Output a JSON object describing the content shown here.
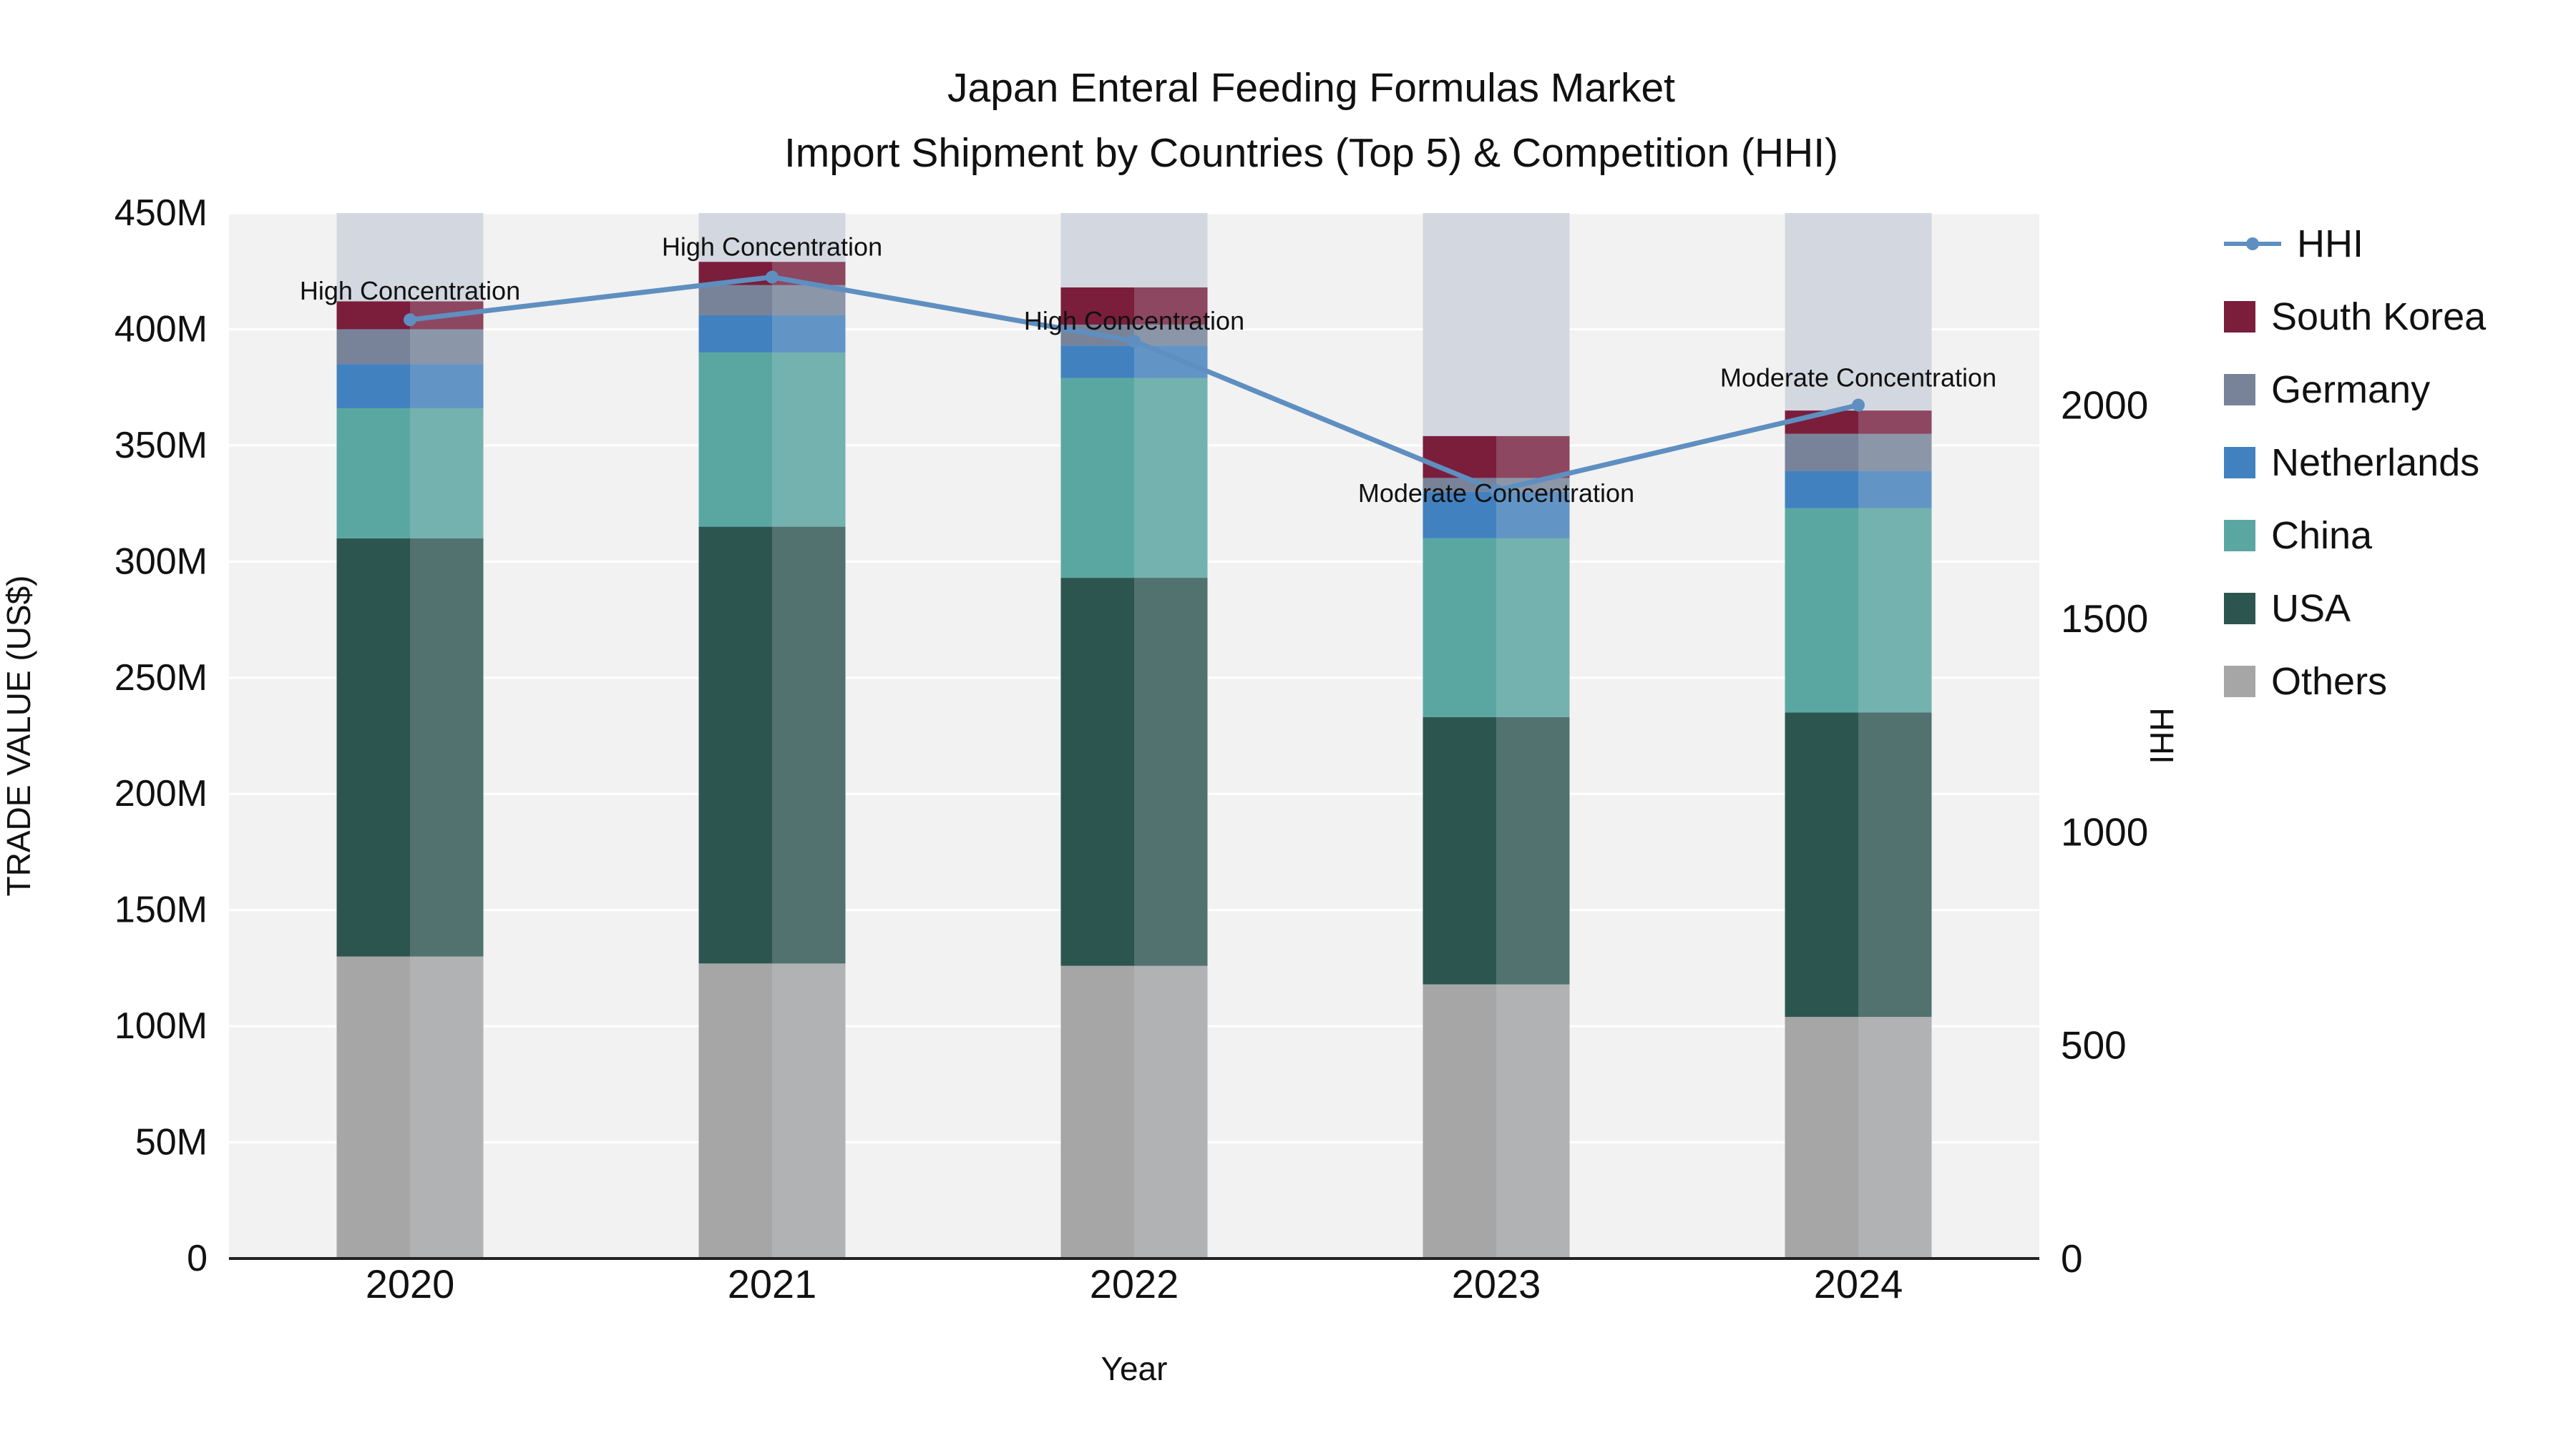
{
  "title": {
    "line1": "Japan Enteral Feeding Formulas Market",
    "line2": "Import Shipment by Countries (Top 5) & Competition (HHI)"
  },
  "colors": {
    "plot_bg": "#f2f2f2",
    "grid": "#ffffff",
    "band": "#d3d8e0",
    "axis_line": "#222222",
    "text": "#111111"
  },
  "chart_data": {
    "type": "bar",
    "subtype": "stacked-bar-with-line",
    "categories": [
      "2020",
      "2021",
      "2022",
      "2023",
      "2024"
    ],
    "xlabel": "Year",
    "ylabel_left": "TRADE VALUE (US$)",
    "ylabel_right": "HHI",
    "values_unit": "million US$",
    "y_left_ticks": [
      "0",
      "50M",
      "100M",
      "150M",
      "200M",
      "250M",
      "300M",
      "350M",
      "400M",
      "450M"
    ],
    "y_left_max": 450,
    "y_right_ticks": [
      "0",
      "500",
      "1000",
      "1500",
      "2000"
    ],
    "y_right_tick_values": [
      0,
      500,
      1000,
      1500,
      2000
    ],
    "y_right_max": 2450,
    "grid": true,
    "legend_position": "right",
    "series": [
      {
        "name": "Others",
        "color": "#a6a6a6",
        "values": [
          130,
          127,
          126,
          118,
          104
        ]
      },
      {
        "name": "USA",
        "color": "#2d5550",
        "values": [
          180,
          188,
          167,
          115,
          131
        ]
      },
      {
        "name": "China",
        "color": "#5aa7a2",
        "values": [
          56,
          75,
          86,
          77,
          88
        ]
      },
      {
        "name": "Netherlands",
        "color": "#4281bf",
        "values": [
          19,
          16,
          14,
          20,
          16
        ]
      },
      {
        "name": "Germany",
        "color": "#78839a",
        "values": [
          15,
          13,
          9,
          6,
          16
        ]
      },
      {
        "name": "South Korea",
        "color": "#7a1e3c",
        "values": [
          12,
          10,
          16,
          18,
          10
        ]
      }
    ],
    "hhi": {
      "name": "HHI",
      "color": "#5e8fc0",
      "values": [
        2200,
        2300,
        2150,
        1800,
        2000
      ]
    },
    "annotations": [
      "High Concentration",
      "High Concentration",
      "High Concentration",
      "Moderate Concentration",
      "Moderate Concentration"
    ],
    "legend_order": [
      "HHI",
      "South Korea",
      "Germany",
      "Netherlands",
      "China",
      "USA",
      "Others"
    ]
  }
}
